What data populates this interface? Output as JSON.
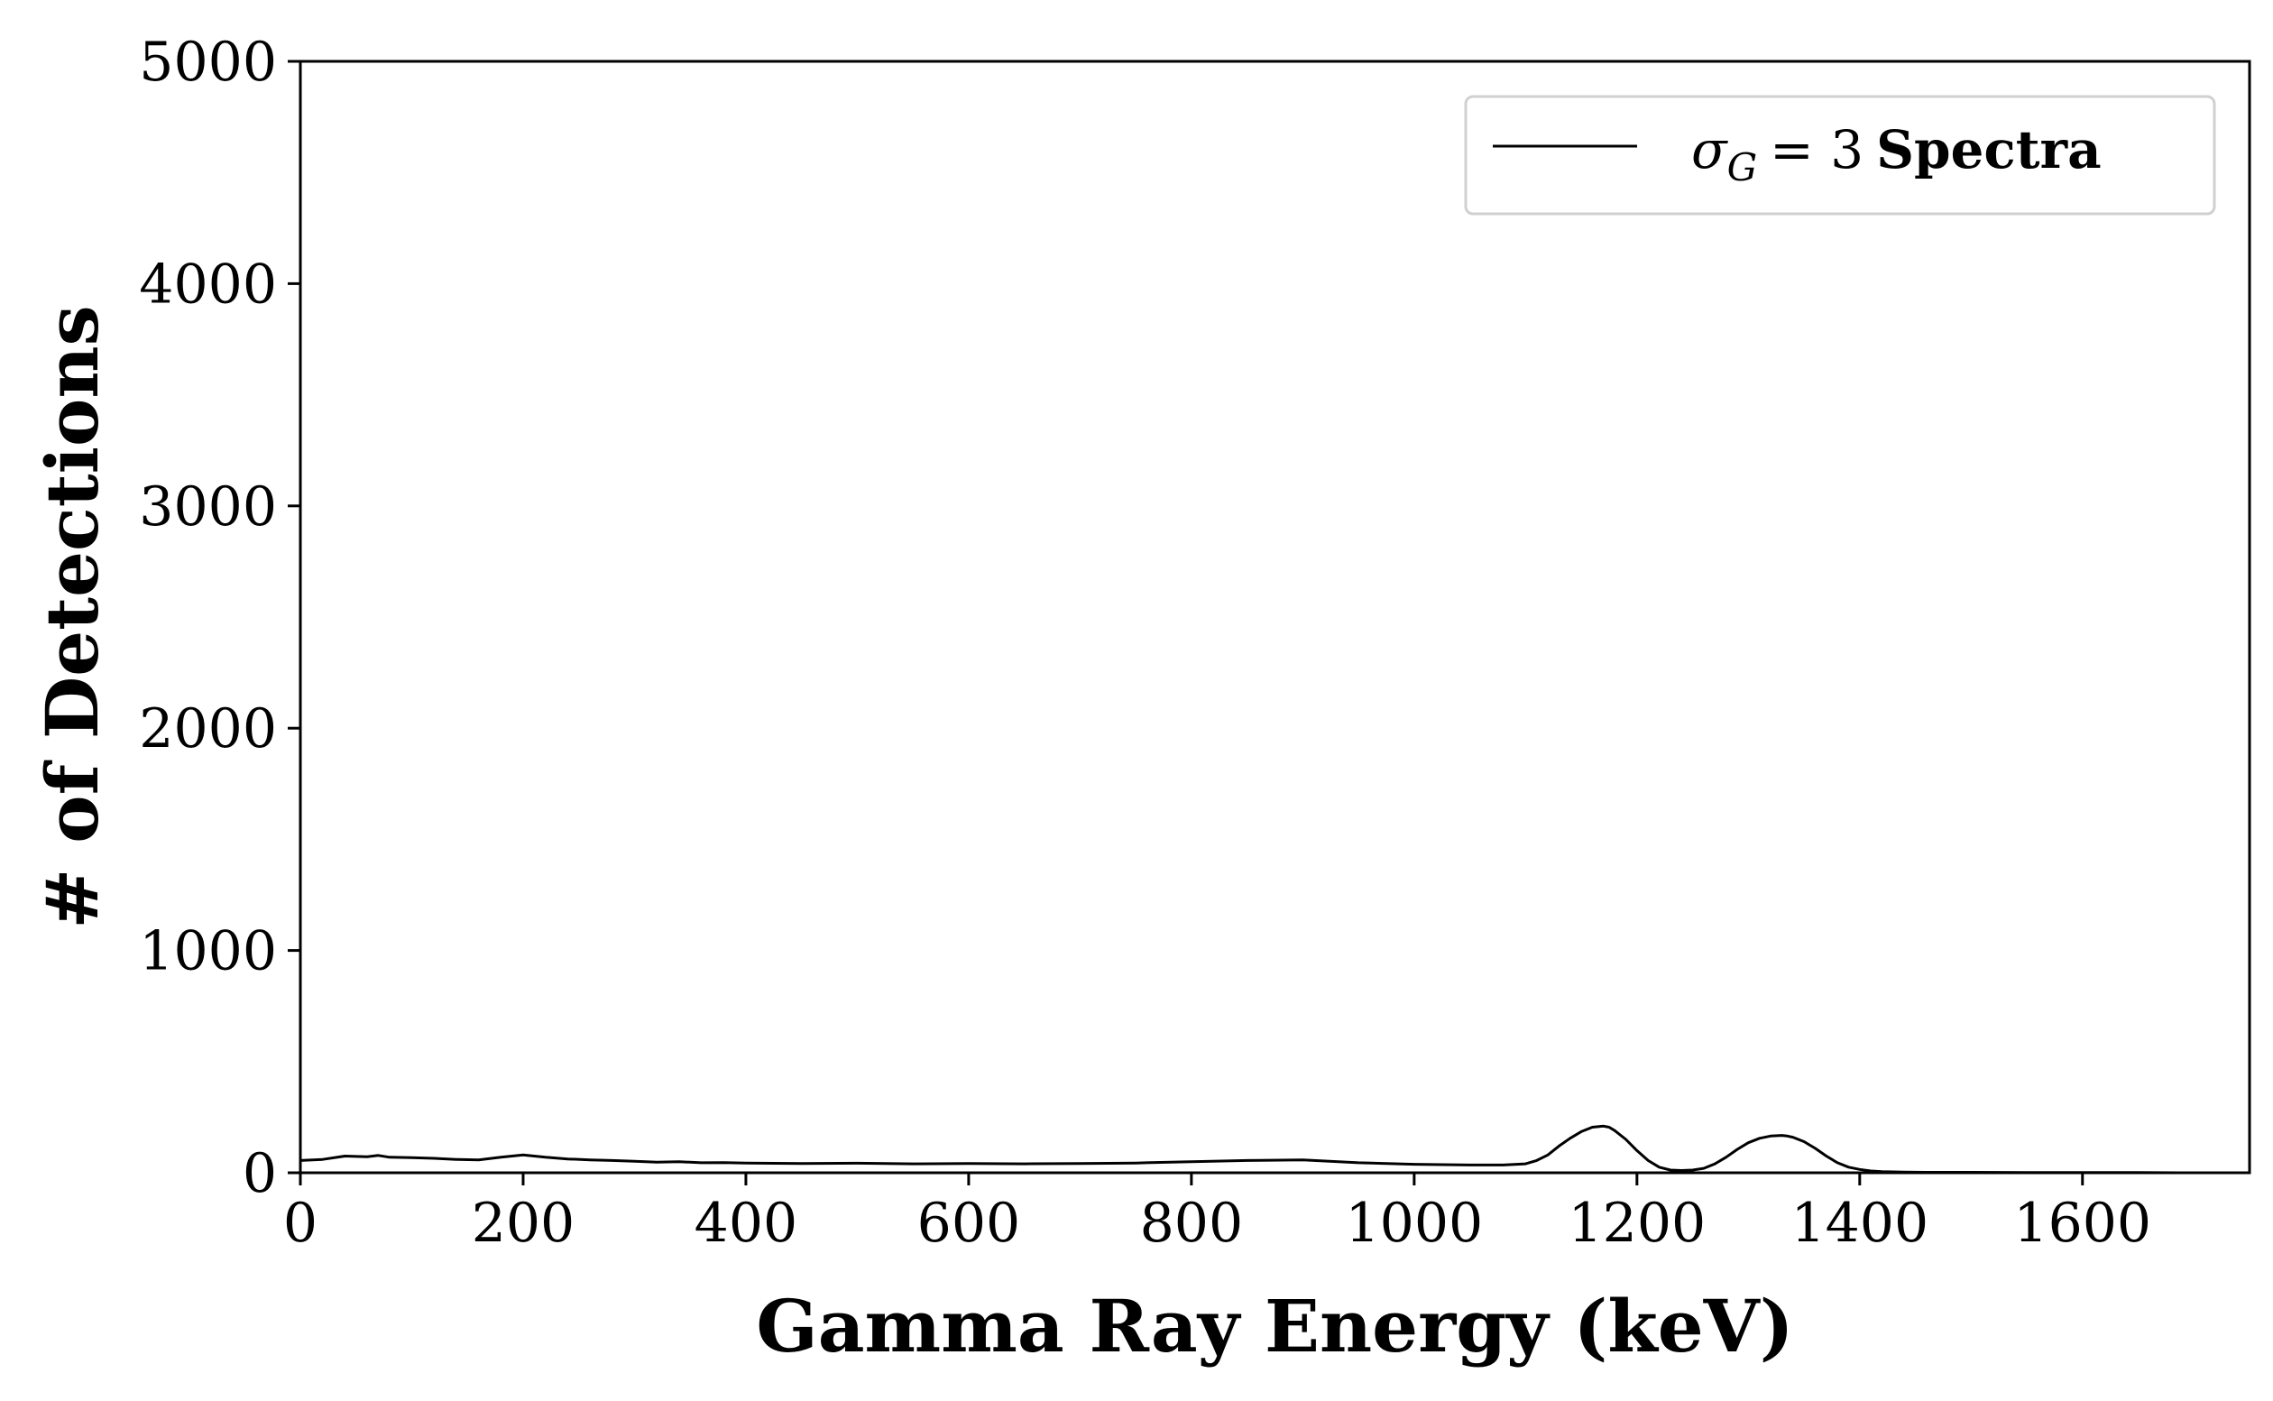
{
  "chart_data": {
    "type": "line",
    "title": "",
    "xlabel": "Gamma Ray Energy (keV)",
    "ylabel": "# of Detections",
    "xlim": [
      0,
      1750
    ],
    "ylim": [
      0,
      5000
    ],
    "xticks": [
      0,
      200,
      400,
      600,
      800,
      1000,
      1200,
      1400,
      1600
    ],
    "yticks": [
      0,
      1000,
      2000,
      3000,
      4000,
      5000
    ],
    "xtick_labels": [
      "0",
      "200",
      "400",
      "600",
      "800",
      "1000",
      "1200",
      "1400",
      "1600"
    ],
    "ytick_labels": [
      "0",
      "1000",
      "2000",
      "3000",
      "4000",
      "5000"
    ],
    "grid": false,
    "legend": {
      "placement": "top-right",
      "sigma": "σ",
      "subscript": "G",
      "equals": "= 3",
      "text": "Spectra"
    },
    "series": [
      {
        "name": "σ_G = 3 Spectra",
        "color": "#000000",
        "x": [
          0,
          20,
          40,
          60,
          70,
          80,
          100,
          120,
          140,
          160,
          180,
          200,
          220,
          240,
          260,
          280,
          300,
          320,
          340,
          360,
          380,
          400,
          450,
          500,
          550,
          600,
          650,
          700,
          750,
          800,
          850,
          900,
          950,
          1000,
          1050,
          1080,
          1100,
          1110,
          1120,
          1130,
          1140,
          1150,
          1160,
          1170,
          1175,
          1180,
          1190,
          1200,
          1210,
          1220,
          1230,
          1240,
          1250,
          1260,
          1270,
          1280,
          1290,
          1300,
          1310,
          1320,
          1330,
          1335,
          1340,
          1350,
          1360,
          1370,
          1380,
          1390,
          1400,
          1410,
          1420,
          1440,
          1460,
          1500,
          1550,
          1600,
          1650,
          1700,
          1750
        ],
        "y": [
          55,
          60,
          75,
          72,
          78,
          70,
          68,
          65,
          60,
          58,
          70,
          80,
          70,
          62,
          58,
          55,
          52,
          48,
          50,
          45,
          46,
          44,
          42,
          43,
          40,
          42,
          40,
          42,
          44,
          50,
          55,
          58,
          45,
          38,
          35,
          35,
          40,
          55,
          80,
          120,
          155,
          185,
          205,
          210,
          205,
          190,
          150,
          100,
          55,
          25,
          12,
          10,
          12,
          20,
          40,
          70,
          105,
          135,
          155,
          165,
          168,
          165,
          160,
          140,
          110,
          75,
          45,
          25,
          15,
          8,
          5,
          3,
          2,
          2,
          1,
          1,
          1,
          0,
          0
        ]
      }
    ]
  }
}
